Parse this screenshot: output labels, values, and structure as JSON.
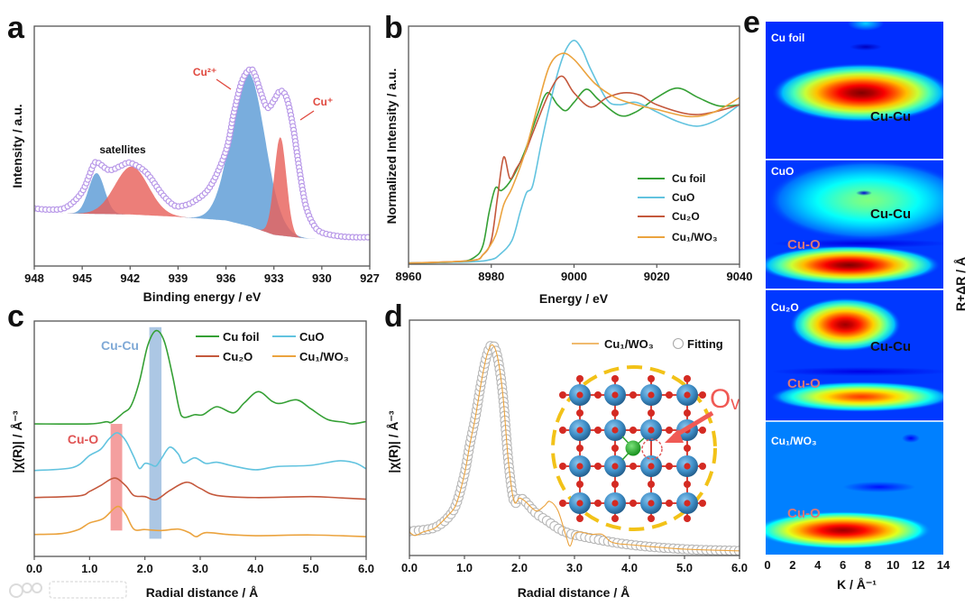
{
  "figure": {
    "watermark": "大数跨境"
  },
  "chart_data": [
    {
      "panel_label": "a",
      "type": "area",
      "title": "",
      "xlabel": "Binding energy / eV",
      "ylabel": "Intensity / a.u.",
      "xlim": [
        948,
        927
      ],
      "ylim": [
        0,
        1
      ],
      "xticks": [
        948,
        945,
        942,
        939,
        936,
        933,
        930,
        927
      ],
      "annotations": [
        "satellites",
        "Cu²⁺",
        "Cu⁺"
      ],
      "experimental": {
        "x": [
          948,
          947,
          946,
          945,
          944.3,
          944,
          943.3,
          942.5,
          942,
          941,
          940,
          939.3,
          938.8,
          938,
          937,
          936,
          935.5,
          935,
          934.5,
          934.2,
          933.8,
          933.4,
          933,
          932.6,
          932.2,
          931.8,
          931.4,
          931,
          930.5,
          930,
          929,
          928,
          927
        ],
        "y": [
          0.24,
          0.235,
          0.245,
          0.31,
          0.42,
          0.43,
          0.4,
          0.42,
          0.43,
          0.39,
          0.3,
          0.255,
          0.25,
          0.27,
          0.33,
          0.48,
          0.64,
          0.77,
          0.82,
          0.8,
          0.72,
          0.66,
          0.69,
          0.73,
          0.7,
          0.58,
          0.4,
          0.25,
          0.17,
          0.14,
          0.125,
          0.12,
          0.12
        ]
      },
      "background": {
        "x": [
          946.5,
          942,
          939,
          936,
          934.5,
          933,
          931,
          927.5
        ],
        "y": [
          0.22,
          0.215,
          0.205,
          0.19,
          0.165,
          0.13,
          0.115,
          0.115
        ]
      },
      "components": [
        {
          "name": "satellite 1",
          "center": 944.1,
          "height": 0.17,
          "sigma": 0.5,
          "color": "#5b9bd5"
        },
        {
          "name": "satellite 2",
          "center": 941.9,
          "height": 0.2,
          "sigma": 1.05,
          "color": "#e8625c"
        },
        {
          "name": "Cu2+ main",
          "center": 934.6,
          "height": 0.64,
          "sigma": 1.05,
          "color": "#5b9bd5"
        },
        {
          "name": "Cu+ main",
          "center": 932.6,
          "height": 0.41,
          "sigma": 0.38,
          "color": "#e8625c"
        }
      ]
    },
    {
      "panel_label": "b",
      "type": "line",
      "xlabel": "Energy / eV",
      "ylabel": "Normalized Intensity / a.u.",
      "xlim": [
        8960,
        9040
      ],
      "ylim": [
        0,
        1
      ],
      "xticks": [
        8960,
        8980,
        9000,
        9020,
        9040
      ],
      "legend_position": "bottom-right",
      "series": [
        {
          "name": "Cu foil",
          "color": "#35a035",
          "x": [
            8960,
            8972,
            8976,
            8978,
            8979.5,
            8981,
            8982.5,
            8985,
            8988,
            8991,
            8993.5,
            8996,
            8998,
            9000,
            9003,
            9006,
            9011,
            9015,
            9020,
            9025,
            9030,
            9035,
            9040
          ],
          "y": [
            0.005,
            0.01,
            0.03,
            0.08,
            0.22,
            0.32,
            0.31,
            0.36,
            0.47,
            0.62,
            0.72,
            0.67,
            0.645,
            0.68,
            0.735,
            0.69,
            0.625,
            0.64,
            0.7,
            0.74,
            0.7,
            0.665,
            0.67
          ]
        },
        {
          "name": "CuO",
          "color": "#62c3df",
          "x": [
            8960,
            8975,
            8980,
            8982,
            8985,
            8987,
            8988.5,
            8990,
            8992,
            8994,
            8996,
            8998,
            9000,
            9002,
            9004,
            9008,
            9011,
            9015,
            9020,
            9025,
            9030,
            9035,
            9040
          ],
          "y": [
            0.005,
            0.01,
            0.02,
            0.04,
            0.1,
            0.22,
            0.3,
            0.33,
            0.5,
            0.66,
            0.8,
            0.9,
            0.94,
            0.9,
            0.82,
            0.69,
            0.67,
            0.68,
            0.64,
            0.6,
            0.58,
            0.61,
            0.67
          ]
        },
        {
          "name": "Cu₂O",
          "color": "#c4583c",
          "x": [
            8960,
            8975,
            8978,
            8980,
            8981.5,
            8983,
            8984.5,
            8986,
            8988,
            8990,
            8994,
            8997,
            9000,
            9004,
            9008,
            9012,
            9016,
            9020,
            9028,
            9034,
            9040
          ],
          "y": [
            0.005,
            0.015,
            0.04,
            0.1,
            0.28,
            0.45,
            0.36,
            0.4,
            0.46,
            0.55,
            0.72,
            0.79,
            0.72,
            0.66,
            0.7,
            0.72,
            0.71,
            0.67,
            0.63,
            0.64,
            0.67
          ]
        },
        {
          "name": "Cu₁/WO₃",
          "color": "#eba33e",
          "x": [
            8960,
            8975,
            8978,
            8981,
            8983,
            8985,
            8988,
            8991,
            8994,
            8997,
            9000,
            9005,
            9010,
            9015,
            9020,
            9028,
            9034,
            9040
          ],
          "y": [
            0.005,
            0.015,
            0.04,
            0.12,
            0.25,
            0.32,
            0.46,
            0.65,
            0.83,
            0.885,
            0.86,
            0.76,
            0.7,
            0.67,
            0.65,
            0.62,
            0.64,
            0.7
          ]
        }
      ]
    },
    {
      "panel_label": "c",
      "type": "line",
      "xlabel": "Radial distance / Å",
      "ylabel": "|χ(R)| / Å⁻³",
      "xlim": [
        0,
        6
      ],
      "ylim": [
        0,
        1
      ],
      "xticks": [
        "0.0",
        "1.0",
        "2.0",
        "3.0",
        "4.0",
        "5.0",
        "6.0"
      ],
      "legend_position": "top-right",
      "annotations": [
        "Cu-Cu",
        "Cu-O"
      ],
      "highlight_bands": [
        {
          "label": "Cu-O",
          "range": [
            1.38,
            1.59
          ],
          "color": "#ee6b6b"
        },
        {
          "label": "Cu-Cu",
          "range": [
            2.08,
            2.3
          ],
          "color": "#7fa9d6"
        }
      ],
      "series": [
        {
          "name": "Cu foil",
          "color": "#35a035",
          "x": [
            0,
            1.0,
            1.3,
            1.4,
            1.6,
            1.75,
            1.9,
            2.05,
            2.2,
            2.35,
            2.5,
            2.62,
            2.7,
            2.9,
            3.05,
            3.3,
            3.6,
            3.8,
            4.05,
            4.3,
            4.45,
            4.75,
            5.0,
            5.3,
            5.6,
            5.75,
            6.0
          ],
          "y": [
            0.563,
            0.563,
            0.572,
            0.57,
            0.608,
            0.64,
            0.742,
            0.895,
            0.959,
            0.914,
            0.768,
            0.627,
            0.591,
            0.602,
            0.602,
            0.636,
            0.61,
            0.653,
            0.7,
            0.659,
            0.65,
            0.665,
            0.627,
            0.582,
            0.57,
            0.563,
            0.573
          ]
        },
        {
          "name": "CuO",
          "color": "#62c3df",
          "x": [
            0,
            0.7,
            1.0,
            1.2,
            1.35,
            1.5,
            1.65,
            1.8,
            1.9,
            2.0,
            2.1,
            2.2,
            2.3,
            2.45,
            2.6,
            2.7,
            2.9,
            3.1,
            3.3,
            3.6,
            4.0,
            4.4,
            5.0,
            5.5,
            5.8,
            6.0
          ],
          "y": [
            0.365,
            0.378,
            0.429,
            0.455,
            0.499,
            0.525,
            0.493,
            0.423,
            0.374,
            0.395,
            0.391,
            0.384,
            0.416,
            0.464,
            0.436,
            0.397,
            0.419,
            0.395,
            0.4,
            0.384,
            0.368,
            0.382,
            0.387,
            0.406,
            0.397,
            0.372
          ]
        },
        {
          "name": "Cu₂O",
          "color": "#c4583c",
          "x": [
            0,
            0.8,
            1.0,
            1.2,
            1.45,
            1.65,
            1.8,
            2.0,
            2.2,
            2.45,
            2.75,
            3.0,
            3.3,
            4.0,
            5.0,
            5.5,
            6.0
          ],
          "y": [
            0.25,
            0.257,
            0.276,
            0.301,
            0.333,
            0.301,
            0.259,
            0.254,
            0.241,
            0.28,
            0.315,
            0.289,
            0.259,
            0.25,
            0.254,
            0.249,
            0.243
          ]
        },
        {
          "name": "Cu₁/WO₃",
          "color": "#eba33e",
          "x": [
            0,
            0.5,
            0.8,
            1.0,
            1.25,
            1.5,
            1.65,
            1.8,
            2.0,
            2.3,
            2.6,
            2.8,
            2.93,
            3.1,
            3.5,
            4.0,
            5.0,
            6.0
          ],
          "y": [
            0.093,
            0.097,
            0.114,
            0.142,
            0.161,
            0.212,
            0.18,
            0.116,
            0.114,
            0.11,
            0.116,
            0.101,
            0.084,
            0.101,
            0.093,
            0.088,
            0.091,
            0.084
          ]
        }
      ]
    },
    {
      "panel_label": "d",
      "type": "line+scatter",
      "xlabel": "Radial distance / Å",
      "ylabel": "|χ(R)| / Å⁻³",
      "xlim": [
        0,
        6
      ],
      "ylim": [
        0,
        1
      ],
      "xticks": [
        "0.0",
        "1.0",
        "2.0",
        "3.0",
        "4.0",
        "5.0",
        "6.0"
      ],
      "legend_position": "top-right",
      "inset_label": "Oᵥ",
      "series": [
        {
          "name": "Cu₁/WO₃",
          "style": "line",
          "color": "#eba33e",
          "x": [
            0,
            0.1,
            0.25,
            0.4,
            0.5,
            0.7,
            0.85,
            1.0,
            1.1,
            1.2,
            1.3,
            1.4,
            1.5,
            1.6,
            1.7,
            1.8,
            1.9,
            2.0,
            2.1,
            2.3,
            2.45,
            2.55,
            2.7,
            2.85,
            2.92,
            3.0,
            3.1,
            3.3,
            3.5,
            3.65,
            3.8,
            4.0,
            5.0,
            6.0
          ],
          "y": [
            0.1,
            0.085,
            0.1,
            0.11,
            0.123,
            0.17,
            0.218,
            0.346,
            0.474,
            0.589,
            0.729,
            0.844,
            0.895,
            0.844,
            0.678,
            0.397,
            0.231,
            0.244,
            0.231,
            0.19,
            0.21,
            0.23,
            0.19,
            0.08,
            0.04,
            0.09,
            0.1,
            0.09,
            0.09,
            0.06,
            0.05,
            0.046,
            0.027,
            0.02
          ]
        },
        {
          "name": "Fitting",
          "style": "open-circles",
          "color": "#b8b8b8",
          "x": [
            0,
            0.3,
            0.5,
            0.7,
            0.85,
            1.0,
            1.1,
            1.2,
            1.3,
            1.4,
            1.5,
            1.6,
            1.7,
            1.8,
            1.9,
            2.0,
            2.1,
            2.3,
            2.5,
            2.8,
            3.2,
            4.0,
            5.0,
            6.0
          ],
          "y": [
            0.103,
            0.11,
            0.123,
            0.161,
            0.218,
            0.346,
            0.474,
            0.589,
            0.729,
            0.844,
            0.895,
            0.844,
            0.678,
            0.397,
            0.231,
            0.244,
            0.231,
            0.18,
            0.148,
            0.103,
            0.078,
            0.046,
            0.027,
            0.02
          ]
        }
      ]
    },
    {
      "panel_label": "e",
      "type": "heatmap",
      "xlabel": "K / Å⁻¹",
      "ylabel": "R+ΔR / Å",
      "xlim": [
        0,
        14
      ],
      "xticks": [
        0,
        2,
        4,
        6,
        8,
        10,
        12,
        14
      ],
      "colormap": "jet",
      "panels": [
        {
          "title": "Cu foil",
          "labels": [
            "Cu-Cu"
          ],
          "peaks": [
            {
              "k": 7.5,
              "intensity": 1.0
            }
          ]
        },
        {
          "title": "CuO",
          "labels": [
            "Cu-Cu",
            "Cu-O"
          ],
          "peaks": [
            {
              "k": 8.0,
              "intensity": 0.5
            },
            {
              "k": 6.5,
              "intensity": 1.0
            }
          ]
        },
        {
          "title": "Cu₂O",
          "labels": [
            "Cu-Cu",
            "Cu-O"
          ],
          "peaks": [
            {
              "k": 6.2,
              "intensity": 0.97
            },
            {
              "k": 7.5,
              "intensity": 0.82
            }
          ]
        },
        {
          "title": "Cu₁/WO₃",
          "labels": [
            "Cu-O"
          ],
          "peaks": [
            {
              "k": 6.0,
              "intensity": 0.97
            }
          ]
        }
      ]
    }
  ]
}
